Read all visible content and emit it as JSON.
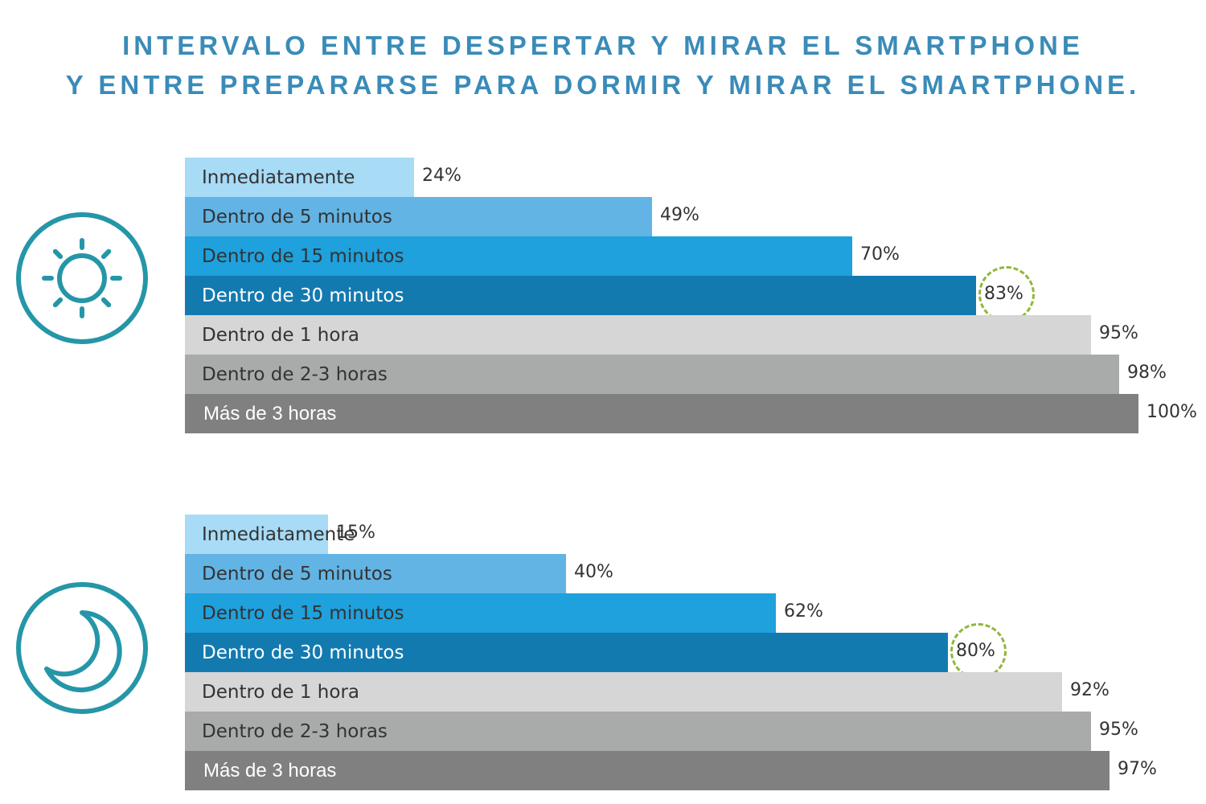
{
  "title": {
    "line1": "INTERVALO ENTRE DESPERTAR Y MIRAR EL SMARTPHONE",
    "line2": "Y ENTRE PREPARARSE PARA DORMIR Y MIRAR EL SMARTPHONE."
  },
  "colors": {
    "title": "#3a8bb8",
    "icon": "#2596a8",
    "highlight": "#8fb83a",
    "bars": [
      "#a7dbf6",
      "#62b4e4",
      "#1ea1dc",
      "#137ab0",
      "#d5d6d5",
      "#a9aaaa",
      "#7f807f"
    ],
    "label_text": [
      "#333333",
      "#333333",
      "#333333",
      "#ffffff",
      "#333333",
      "#333333",
      "#ffffff"
    ]
  },
  "icons": {
    "morning": "sun-icon",
    "night": "moon-icon"
  },
  "chart_data": [
    {
      "type": "bar",
      "orientation": "horizontal",
      "categories": [
        "Inmediatamente",
        "Dentro de 5 minutos",
        "Dentro de 15 minutos",
        "Dentro de 30 minutos",
        "Dentro de 1 hora",
        "Dentro de 2-3 horas",
        "Más de 3 horas"
      ],
      "values": [
        24,
        49,
        70,
        83,
        95,
        98,
        100
      ],
      "value_labels": [
        "24%",
        "49%",
        "70%",
        "83%",
        "95%",
        "98%",
        "100%"
      ],
      "highlight_index": 3,
      "xlim": [
        0,
        100
      ]
    },
    {
      "type": "bar",
      "orientation": "horizontal",
      "categories": [
        "Inmediatamente",
        "Dentro de 5 minutos",
        "Dentro de 15 minutos",
        "Dentro de 30 minutos",
        "Dentro de 1 hora",
        "Dentro de 2-3 horas",
        "Más de 3 horas"
      ],
      "values": [
        15,
        40,
        62,
        80,
        92,
        95,
        97
      ],
      "value_labels": [
        "15%",
        "40%",
        "62%",
        "80%",
        "92%",
        "95%",
        "97%"
      ],
      "highlight_index": 3,
      "xlim": [
        0,
        100
      ]
    }
  ]
}
